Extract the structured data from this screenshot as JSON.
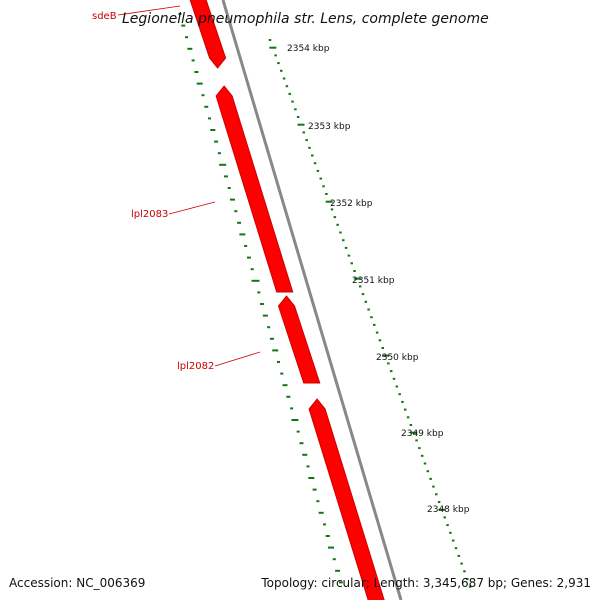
{
  "title": "Legionella pneumophila str. Lens, complete genome",
  "footer": {
    "accession": "Accession: NC_006369",
    "summary": "Topology: circular; Length: 3,345,687 bp; Genes: 2,931"
  },
  "colors": {
    "gene": "#ff0000",
    "gene_edge": "#cc0000",
    "backbone": "#888888",
    "gc_ticks": "#117711",
    "label": "#cc0000"
  },
  "ruler": [
    {
      "kbp": 2354,
      "label": "2354 kbp"
    },
    {
      "kbp": 2353,
      "label": "2353 kbp"
    },
    {
      "kbp": 2352,
      "label": "2352 kbp"
    },
    {
      "kbp": 2351,
      "label": "2351 kbp"
    },
    {
      "kbp": 2350,
      "label": "2350 kbp"
    },
    {
      "kbp": 2349,
      "label": "2349 kbp"
    },
    {
      "kbp": 2348,
      "label": "2348 kbp"
    }
  ],
  "genes": [
    {
      "name": "sdeB",
      "strand": "minus"
    },
    {
      "name": "lpl2083",
      "strand": "minus"
    },
    {
      "name": "lpl2082",
      "strand": "minus"
    },
    {
      "name": "",
      "strand": "minus"
    }
  ]
}
